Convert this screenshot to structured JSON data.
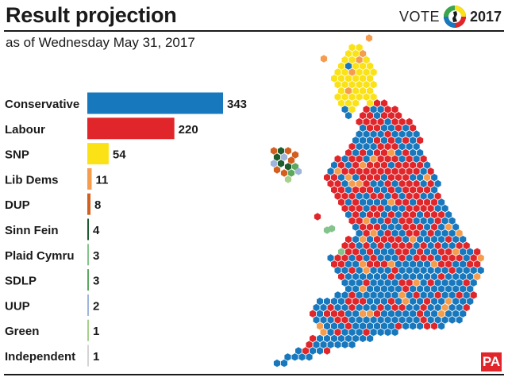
{
  "header": {
    "title": "Result projection",
    "subtitle": "as of Wednesday May 31, 2017",
    "brand_vote": "VOTE",
    "brand_year": "2017"
  },
  "footer": {
    "source_logo": "PA"
  },
  "chart_data": {
    "type": "bar",
    "orientation": "horizontal",
    "title": "Result projection",
    "subtitle": "as of Wednesday May 31, 2017",
    "categories": [
      "Conservative",
      "Labour",
      "SNP",
      "Lib Dems",
      "DUP",
      "Sinn Fein",
      "Plaid Cymru",
      "SDLP",
      "UUP",
      "Green",
      "Independent"
    ],
    "values": [
      343,
      220,
      54,
      11,
      8,
      4,
      3,
      3,
      2,
      1,
      1
    ],
    "colors": [
      "#1878bd",
      "#e0262a",
      "#fbe216",
      "#f59d4c",
      "#d35f1f",
      "#1d5c2e",
      "#84c48b",
      "#5da85f",
      "#9fb5db",
      "#a8d08d",
      "#d4d4d4"
    ],
    "data_labels": true,
    "grid": false,
    "legend": "none"
  },
  "map": {
    "type": "hex cartogram of seats",
    "colors": {
      "Conservative": "#1878bd",
      "Labour": "#e0262a",
      "SNP": "#fbe216",
      "Lib Dems": "#f59d4c",
      "DUP": "#d35f1f",
      "Sinn Fein": "#1d5c2e",
      "Plaid Cymru": "#84c48b",
      "SDLP": "#5da85f",
      "UUP": "#9fb5db",
      "Green": "#a8d08d",
      "Independent": "#d4d4d4"
    }
  }
}
